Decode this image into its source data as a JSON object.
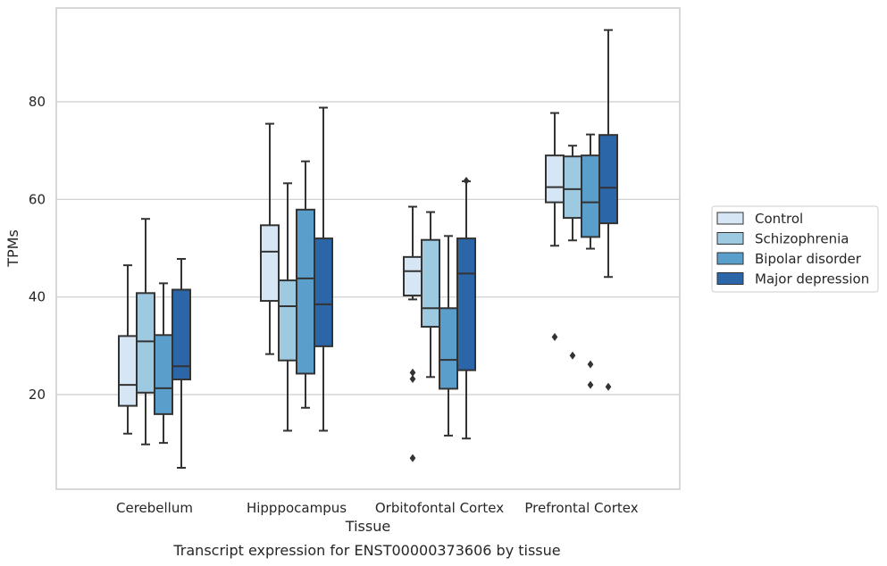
{
  "chart_data": {
    "type": "box",
    "caption": "Transcript expression for ENST00000373606 by tissue",
    "xlabel": "Tissue",
    "ylabel": "TPMs",
    "ylim": [
      0,
      99
    ],
    "yticks": [
      20,
      40,
      60,
      80
    ],
    "grid": "horizontal",
    "legend_position": "right",
    "categories": [
      "Cerebellum",
      "Hipppocampus",
      "Orbitofontal Cortex",
      "Prefrontal Cortex"
    ],
    "series": [
      {
        "name": "Control",
        "color": "#d6e6f4",
        "boxes": [
          {
            "whislo": 12.0,
            "q1": 17.7,
            "med": 22.0,
            "q3": 32.0,
            "whishi": 46.5,
            "fliers": []
          },
          {
            "whislo": 28.3,
            "q1": 39.2,
            "med": 49.3,
            "q3": 54.7,
            "whishi": 75.5,
            "fliers": []
          },
          {
            "whislo": 39.5,
            "q1": 40.3,
            "med": 45.3,
            "q3": 48.2,
            "whishi": 58.5,
            "fliers": [
              24.5,
              23.2,
              7.0
            ]
          },
          {
            "whislo": 50.5,
            "q1": 59.4,
            "med": 62.5,
            "q3": 69.0,
            "whishi": 77.7,
            "fliers": [
              31.8
            ]
          }
        ]
      },
      {
        "name": "Schizophrenia",
        "color": "#9ecae1",
        "boxes": [
          {
            "whislo": 9.8,
            "q1": 20.4,
            "med": 30.9,
            "q3": 40.8,
            "whishi": 56.0,
            "fliers": []
          },
          {
            "whislo": 12.6,
            "q1": 27.0,
            "med": 38.1,
            "q3": 43.4,
            "whishi": 63.3,
            "fliers": []
          },
          {
            "whislo": 23.6,
            "q1": 33.9,
            "med": 37.7,
            "q3": 51.7,
            "whishi": 57.4,
            "fliers": []
          },
          {
            "whislo": 51.6,
            "q1": 56.2,
            "med": 62.1,
            "q3": 68.8,
            "whishi": 71.0,
            "fliers": [
              28.0
            ]
          }
        ]
      },
      {
        "name": "Bipolar disorder",
        "color": "#5a9fcc",
        "boxes": [
          {
            "whislo": 10.1,
            "q1": 16.0,
            "med": 21.3,
            "q3": 32.2,
            "whishi": 42.8,
            "fliers": []
          },
          {
            "whislo": 17.3,
            "q1": 24.3,
            "med": 43.8,
            "q3": 57.9,
            "whishi": 67.8,
            "fliers": []
          },
          {
            "whislo": 11.6,
            "q1": 21.2,
            "med": 27.1,
            "q3": 37.7,
            "whishi": 52.5,
            "fliers": []
          },
          {
            "whislo": 49.9,
            "q1": 52.3,
            "med": 59.4,
            "q3": 69.0,
            "whishi": 73.3,
            "fliers": [
              26.2,
              22.0
            ]
          }
        ]
      },
      {
        "name": "Major depression",
        "color": "#2a66a8",
        "boxes": [
          {
            "whislo": 5.0,
            "q1": 23.1,
            "med": 25.8,
            "q3": 41.5,
            "whishi": 47.8,
            "fliers": []
          },
          {
            "whislo": 12.6,
            "q1": 29.9,
            "med": 38.5,
            "q3": 52.0,
            "whishi": 78.8,
            "fliers": []
          },
          {
            "whislo": 11.0,
            "q1": 25.0,
            "med": 44.8,
            "q3": 52.0,
            "whishi": 63.7,
            "fliers": [
              63.8
            ]
          },
          {
            "whislo": 44.1,
            "q1": 55.1,
            "med": 62.4,
            "q3": 73.2,
            "whishi": 94.7,
            "fliers": [
              21.6
            ]
          }
        ]
      }
    ]
  }
}
